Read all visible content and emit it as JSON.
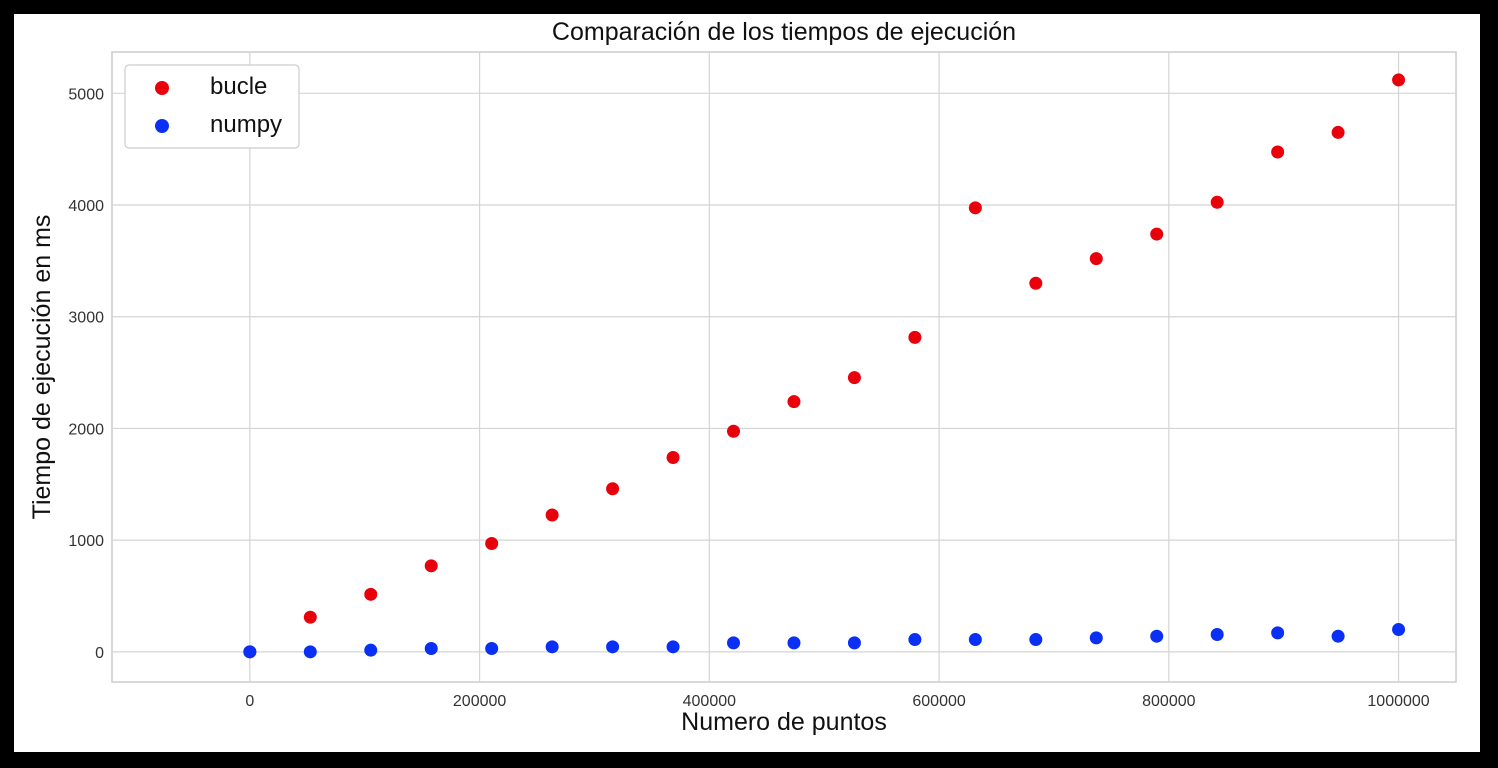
{
  "chart_data": {
    "type": "scatter",
    "title": "Comparación de los tiempos de ejecución",
    "xlabel": "Numero de puntos",
    "ylabel": "Tiempo de ejecución en ms",
    "xlim": [
      -120000,
      1050000
    ],
    "ylim": [
      -270,
      5370
    ],
    "xticks": [
      0,
      200000,
      400000,
      600000,
      800000,
      1000000
    ],
    "xtick_labels": [
      "0",
      "200000",
      "400000",
      "600000",
      "800000",
      "1000000"
    ],
    "yticks": [
      0,
      1000,
      2000,
      3000,
      4000,
      5000
    ],
    "ytick_labels": [
      "0",
      "1000",
      "2000",
      "3000",
      "4000",
      "5000"
    ],
    "grid": true,
    "legend_position": "top-left",
    "x": [
      0,
      52632,
      105263,
      157895,
      210526,
      263158,
      315789,
      368421,
      421053,
      473684,
      526316,
      578947,
      631579,
      684211,
      736842,
      789474,
      842105,
      894737,
      947368,
      1000000
    ],
    "series": [
      {
        "name": "bucle",
        "color": "#e8000b",
        "values": [
          0,
          310,
          515,
          770,
          970,
          1225,
          1460,
          1740,
          1975,
          2240,
          2455,
          2815,
          3975,
          3300,
          3520,
          3740,
          4025,
          4475,
          4650,
          5120
        ]
      },
      {
        "name": "numpy",
        "color": "#0a2ff5",
        "values": [
          0,
          0,
          15,
          30,
          30,
          45,
          45,
          45,
          80,
          80,
          80,
          110,
          110,
          110,
          125,
          140,
          155,
          170,
          140,
          200
        ]
      }
    ]
  }
}
